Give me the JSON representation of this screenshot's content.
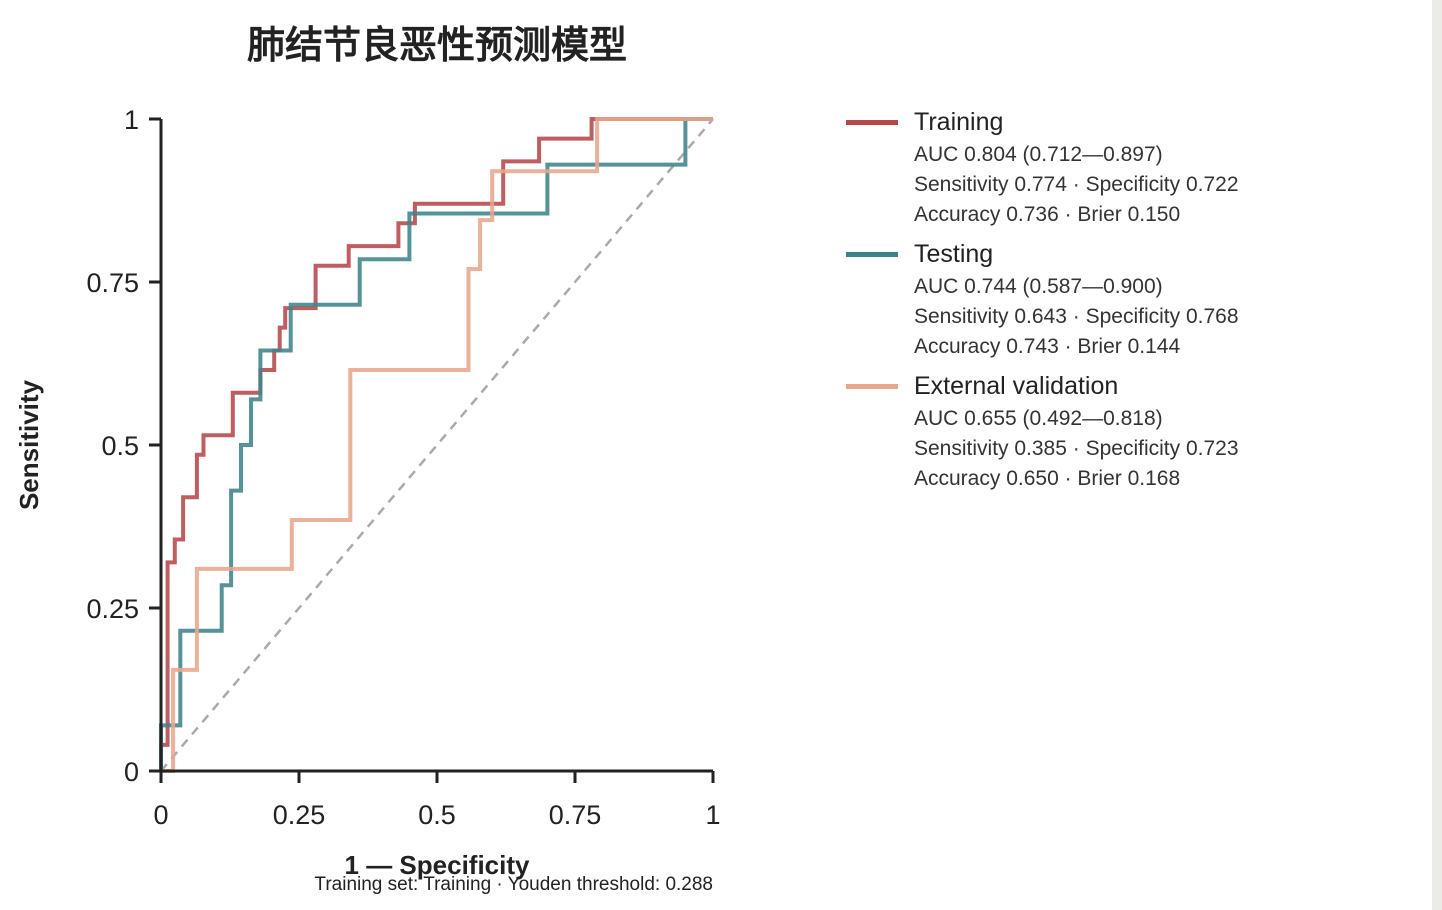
{
  "chart_data": {
    "type": "line",
    "title": "肺结节良恶性预测模型",
    "xlabel": "1 — Specificity",
    "ylabel": "Sensitivity",
    "xlim": [
      0,
      1
    ],
    "ylim": [
      0,
      1
    ],
    "xticks": [
      "0",
      "0.25",
      "0.5",
      "0.75",
      "1"
    ],
    "yticks": [
      "0",
      "0.25",
      "0.5",
      "0.75",
      "1"
    ],
    "tick_values": [
      0,
      0.25,
      0.5,
      0.75,
      1
    ],
    "grid": false,
    "legend_position": "right",
    "reference_line": "diagonal dashed",
    "footnote": "Training set: Training · Youden threshold: 0.288",
    "series": [
      {
        "name": "Training",
        "color": "#b5484a",
        "stats": [
          "AUC 0.804 (0.712—0.897)",
          "Sensitivity 0.774 · Specificity 0.722",
          "Accuracy 0.736 · Brier 0.150"
        ],
        "points": [
          [
            0,
            0
          ],
          [
            0,
            0.04
          ],
          [
            0.012,
            0.04
          ],
          [
            0.012,
            0.32
          ],
          [
            0.025,
            0.32
          ],
          [
            0.025,
            0.355
          ],
          [
            0.04,
            0.355
          ],
          [
            0.04,
            0.42
          ],
          [
            0.065,
            0.42
          ],
          [
            0.065,
            0.485
          ],
          [
            0.077,
            0.485
          ],
          [
            0.077,
            0.515
          ],
          [
            0.13,
            0.515
          ],
          [
            0.13,
            0.58
          ],
          [
            0.18,
            0.58
          ],
          [
            0.18,
            0.615
          ],
          [
            0.205,
            0.615
          ],
          [
            0.205,
            0.645
          ],
          [
            0.215,
            0.645
          ],
          [
            0.215,
            0.68
          ],
          [
            0.225,
            0.68
          ],
          [
            0.225,
            0.71
          ],
          [
            0.28,
            0.71
          ],
          [
            0.28,
            0.775
          ],
          [
            0.34,
            0.775
          ],
          [
            0.34,
            0.805
          ],
          [
            0.43,
            0.805
          ],
          [
            0.43,
            0.84
          ],
          [
            0.46,
            0.84
          ],
          [
            0.46,
            0.87
          ],
          [
            0.62,
            0.87
          ],
          [
            0.62,
            0.935
          ],
          [
            0.685,
            0.935
          ],
          [
            0.685,
            0.97
          ],
          [
            0.78,
            0.97
          ],
          [
            0.78,
            1
          ],
          [
            1,
            1
          ]
        ]
      },
      {
        "name": "Testing",
        "color": "#3d848a",
        "stats": [
          "AUC 0.744 (0.587—0.900)",
          "Sensitivity 0.643 · Specificity 0.768",
          "Accuracy 0.743 · Brier 0.144"
        ],
        "points": [
          [
            0,
            0
          ],
          [
            0,
            0.07
          ],
          [
            0.035,
            0.07
          ],
          [
            0.035,
            0.215
          ],
          [
            0.11,
            0.215
          ],
          [
            0.11,
            0.285
          ],
          [
            0.127,
            0.285
          ],
          [
            0.127,
            0.43
          ],
          [
            0.145,
            0.43
          ],
          [
            0.145,
            0.5
          ],
          [
            0.163,
            0.5
          ],
          [
            0.163,
            0.57
          ],
          [
            0.18,
            0.57
          ],
          [
            0.18,
            0.645
          ],
          [
            0.235,
            0.645
          ],
          [
            0.235,
            0.715
          ],
          [
            0.36,
            0.715
          ],
          [
            0.36,
            0.785
          ],
          [
            0.45,
            0.785
          ],
          [
            0.45,
            0.855
          ],
          [
            0.7,
            0.855
          ],
          [
            0.7,
            0.93
          ],
          [
            0.95,
            0.93
          ],
          [
            0.95,
            1
          ],
          [
            1,
            1
          ]
        ]
      },
      {
        "name": "External validation",
        "color": "#e8a68c",
        "stats": [
          "AUC 0.655 (0.492—0.818)",
          "Sensitivity 0.385 · Specificity 0.723",
          "Accuracy 0.650 · Brier 0.168"
        ],
        "points": [
          [
            0,
            0
          ],
          [
            0.022,
            0
          ],
          [
            0.022,
            0.155
          ],
          [
            0.065,
            0.155
          ],
          [
            0.065,
            0.31
          ],
          [
            0.237,
            0.31
          ],
          [
            0.237,
            0.385
          ],
          [
            0.343,
            0.385
          ],
          [
            0.343,
            0.615
          ],
          [
            0.557,
            0.615
          ],
          [
            0.557,
            0.77
          ],
          [
            0.578,
            0.77
          ],
          [
            0.578,
            0.845
          ],
          [
            0.6,
            0.845
          ],
          [
            0.6,
            0.92
          ],
          [
            0.79,
            0.92
          ],
          [
            0.79,
            1
          ],
          [
            1,
            1
          ]
        ]
      }
    ]
  }
}
